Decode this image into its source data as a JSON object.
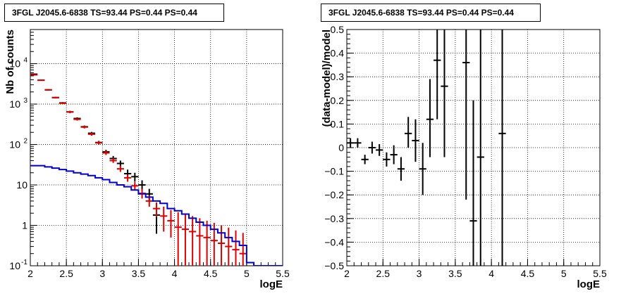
{
  "chart_data": [
    {
      "type": "scatter",
      "title": "3FGL J2045.6-6838 TS=93.44 PS=0.44 PS=0.44",
      "xlabel": "logE",
      "ylabel": "Nb of counts",
      "xlim": [
        2,
        5.5
      ],
      "ylim": [
        0.1,
        70000
      ],
      "yscale": "log",
      "grid": true,
      "x_ticks": [
        "2",
        "2.5",
        "3",
        "3.5",
        "4",
        "4.5",
        "5",
        "5.5"
      ],
      "y_ticks": [
        {
          "value": 0.1,
          "label": "10",
          "sup": "-1"
        },
        {
          "value": 1,
          "label": "1",
          "sup": ""
        },
        {
          "value": 10,
          "label": "10",
          "sup": ""
        },
        {
          "value": 100,
          "label": "10",
          "sup": "2"
        },
        {
          "value": 1000,
          "label": "10",
          "sup": "3"
        },
        {
          "value": 10000,
          "label": "10",
          "sup": "4"
        }
      ],
      "series": [
        {
          "color": "#000000",
          "points": [
            {
              "x": 2.05,
              "y": 5500,
              "lo": 5350,
              "hi": 5650
            },
            {
              "x": 2.15,
              "y": 3900,
              "lo": 3780,
              "hi": 4020
            },
            {
              "x": 2.25,
              "y": 2250,
              "lo": 2160,
              "hi": 2340
            },
            {
              "x": 2.35,
              "y": 1450,
              "lo": 1390,
              "hi": 1510
            },
            {
              "x": 2.45,
              "y": 1070,
              "lo": 1020,
              "hi": 1120
            },
            {
              "x": 2.55,
              "y": 640,
              "lo": 600,
              "hi": 680
            },
            {
              "x": 2.65,
              "y": 440,
              "lo": 410,
              "hi": 470
            },
            {
              "x": 2.75,
              "y": 275,
              "lo": 255,
              "hi": 295
            },
            {
              "x": 2.85,
              "y": 190,
              "lo": 175,
              "hi": 205
            },
            {
              "x": 2.95,
              "y": 112,
              "lo": 101,
              "hi": 123
            },
            {
              "x": 3.05,
              "y": 66,
              "lo": 58,
              "hi": 74
            },
            {
              "x": 3.15,
              "y": 45,
              "lo": 39,
              "hi": 52
            },
            {
              "x": 3.25,
              "y": 34,
              "lo": 28,
              "hi": 40
            },
            {
              "x": 3.35,
              "y": 19,
              "lo": 15,
              "hi": 24
            },
            {
              "x": 3.45,
              "y": 16,
              "lo": 12,
              "hi": 20
            },
            {
              "x": 3.55,
              "y": 10,
              "lo": 7,
              "hi": 13
            },
            {
              "x": 3.65,
              "y": 6,
              "lo": 4,
              "hi": 8
            },
            {
              "x": 3.75,
              "y": 1.8,
              "lo": 0.62,
              "hi": 3.2
            }
          ]
        },
        {
          "color": "#dd0000",
          "points": [
            {
              "x": 2.05,
              "y": 5300,
              "lo": 5150,
              "hi": 5450
            },
            {
              "x": 2.15,
              "y": 3900,
              "lo": 3780,
              "hi": 4020
            },
            {
              "x": 2.25,
              "y": 2250,
              "lo": 2160,
              "hi": 2340
            },
            {
              "x": 2.35,
              "y": 1450,
              "lo": 1390,
              "hi": 1510
            },
            {
              "x": 2.45,
              "y": 1050,
              "lo": 1000,
              "hi": 1100
            },
            {
              "x": 2.55,
              "y": 640,
              "lo": 600,
              "hi": 680
            },
            {
              "x": 2.65,
              "y": 420,
              "lo": 390,
              "hi": 450
            },
            {
              "x": 2.75,
              "y": 270,
              "lo": 250,
              "hi": 290
            },
            {
              "x": 2.85,
              "y": 180,
              "lo": 165,
              "hi": 195
            },
            {
              "x": 2.95,
              "y": 110,
              "lo": 99,
              "hi": 121
            },
            {
              "x": 3.05,
              "y": 62,
              "lo": 55,
              "hi": 70
            },
            {
              "x": 3.15,
              "y": 40,
              "lo": 35,
              "hi": 46
            },
            {
              "x": 3.25,
              "y": 25,
              "lo": 21,
              "hi": 30
            },
            {
              "x": 3.35,
              "y": 15,
              "lo": 12,
              "hi": 18
            },
            {
              "x": 3.45,
              "y": 9.5,
              "lo": 7.6,
              "hi": 11.8
            },
            {
              "x": 3.55,
              "y": 6.2,
              "lo": 4.6,
              "hi": 8.0
            },
            {
              "x": 3.65,
              "y": 4.0,
              "lo": 2.9,
              "hi": 5.5
            },
            {
              "x": 3.75,
              "y": 2.6,
              "lo": 1.6,
              "hi": 3.7
            },
            {
              "x": 3.85,
              "y": 1.7,
              "lo": 0.7,
              "hi": 2.9
            },
            {
              "x": 3.95,
              "y": 1.3,
              "lo": 0.5,
              "hi": 2.4
            },
            {
              "x": 4.05,
              "y": 0.9,
              "lo": 0.1,
              "hi": 2.1
            },
            {
              "x": 4.15,
              "y": 0.8,
              "lo": 0.1,
              "hi": 1.9
            },
            {
              "x": 4.25,
              "y": 0.7,
              "lo": 0.1,
              "hi": 1.7
            },
            {
              "x": 4.35,
              "y": 0.55,
              "lo": 0.1,
              "hi": 1.5
            },
            {
              "x": 4.45,
              "y": 0.5,
              "lo": 0.1,
              "hi": 1.3
            },
            {
              "x": 4.55,
              "y": 0.42,
              "lo": 0.1,
              "hi": 1.15
            },
            {
              "x": 4.65,
              "y": 0.36,
              "lo": 0.1,
              "hi": 1.0
            },
            {
              "x": 4.75,
              "y": 0.3,
              "lo": 0.1,
              "hi": 0.88
            },
            {
              "x": 4.85,
              "y": 0.25,
              "lo": 0.1,
              "hi": 0.75
            },
            {
              "x": 4.95,
              "y": 0.2,
              "lo": 0.1,
              "hi": 0.65
            }
          ]
        },
        {
          "color": "#0000cc",
          "step": true,
          "edges": [
            2.0,
            2.1,
            2.2,
            2.3,
            2.4,
            2.5,
            2.6,
            2.7,
            2.8,
            2.9,
            3.0,
            3.1,
            3.2,
            3.3,
            3.4,
            3.5,
            3.6,
            3.7,
            3.8,
            3.9,
            4.0,
            4.1,
            4.2,
            4.3,
            4.4,
            4.5,
            4.6,
            4.7,
            4.8,
            4.9,
            5.0,
            5.1,
            5.2,
            5.3,
            5.4,
            5.5
          ],
          "values": [
            30,
            30,
            28,
            26,
            24,
            22,
            20,
            18.5,
            17,
            15,
            13.5,
            11.5,
            10,
            9,
            7.5,
            6,
            5,
            4,
            3.5,
            2.6,
            2.3,
            1.9,
            1.5,
            1.2,
            1.0,
            0.8,
            0.65,
            0.5,
            0.4,
            0.32,
            0.12,
            0.1,
            0.1,
            0.1,
            0.1
          ]
        }
      ]
    },
    {
      "type": "scatter",
      "title": "3FGL J2045.6-6838 TS=93.44 PS=0.44 PS=0.44",
      "xlabel": "logE",
      "ylabel": "(data-model)/model",
      "xlim": [
        2,
        5.5
      ],
      "ylim": [
        -0.5,
        0.5
      ],
      "grid": true,
      "x_ticks": [
        "2",
        "2.5",
        "3",
        "3.5",
        "4",
        "4.5",
        "5",
        "5.5"
      ],
      "y_ticks": [
        "-0.5",
        "-0.4",
        "-0.3",
        "-0.2",
        "-0.1",
        "0",
        "0.1",
        "0.2",
        "0.3",
        "0.4",
        "0.5"
      ],
      "series": [
        {
          "color": "#000000",
          "points": [
            {
              "x": 2.05,
              "y": 0.02,
              "lo": 0.0,
              "hi": 0.04
            },
            {
              "x": 2.15,
              "y": 0.02,
              "lo": 0.0,
              "hi": 0.04
            },
            {
              "x": 2.25,
              "y": -0.05,
              "lo": -0.07,
              "hi": -0.03
            },
            {
              "x": 2.35,
              "y": 0.0,
              "lo": -0.025,
              "hi": 0.025
            },
            {
              "x": 2.45,
              "y": -0.01,
              "lo": -0.035,
              "hi": 0.015
            },
            {
              "x": 2.55,
              "y": -0.05,
              "lo": -0.08,
              "hi": -0.02
            },
            {
              "x": 2.65,
              "y": -0.03,
              "lo": -0.07,
              "hi": 0.01
            },
            {
              "x": 2.75,
              "y": -0.09,
              "lo": -0.14,
              "hi": -0.04
            },
            {
              "x": 2.85,
              "y": 0.06,
              "lo": 0.0,
              "hi": 0.13
            },
            {
              "x": 2.95,
              "y": 0.03,
              "lo": -0.06,
              "hi": 0.12
            },
            {
              "x": 3.05,
              "y": -0.09,
              "lo": -0.2,
              "hi": 0.02
            },
            {
              "x": 3.15,
              "y": 0.12,
              "lo": -0.04,
              "hi": 0.29
            },
            {
              "x": 3.25,
              "y": 0.37,
              "lo": 0.12,
              "hi": 0.5
            },
            {
              "x": 3.35,
              "y": 0.26,
              "lo": -0.04,
              "hi": 0.5
            },
            {
              "x": 3.65,
              "y": 0.36,
              "lo": -0.22,
              "hi": 0.5
            },
            {
              "x": 3.75,
              "y": -0.31,
              "lo": -0.5,
              "hi": 0.2
            },
            {
              "x": 3.85,
              "y": -0.04,
              "lo": -0.5,
              "hi": 0.5
            },
            {
              "x": 4.15,
              "y": 0.06,
              "lo": -0.5,
              "hi": 0.5
            }
          ]
        }
      ]
    }
  ]
}
